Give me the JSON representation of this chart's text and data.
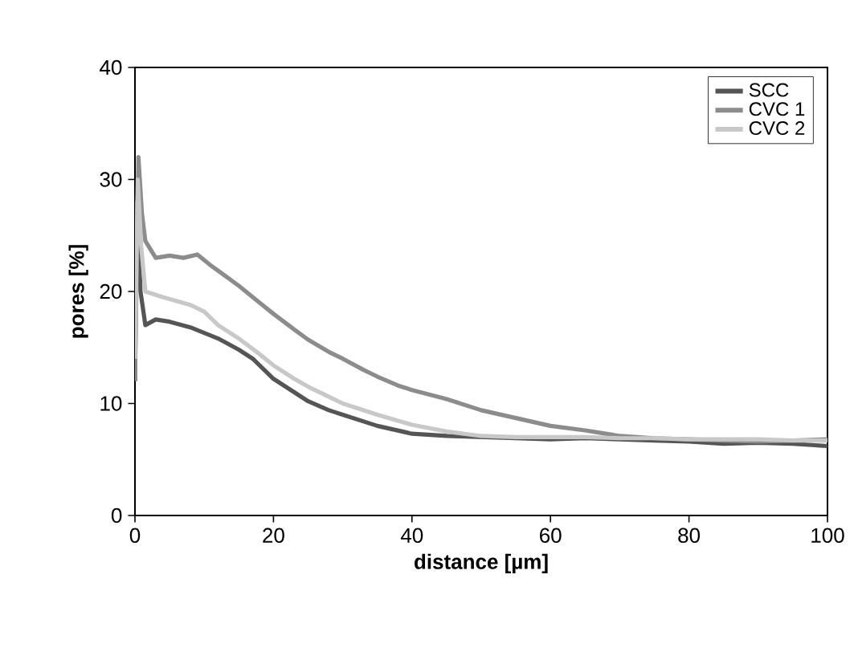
{
  "chart_data": {
    "type": "line",
    "xlabel": "distance [µm]",
    "ylabel": "pores [%]",
    "xlim": [
      0,
      100
    ],
    "ylim": [
      0,
      40
    ],
    "xticks": [
      0,
      20,
      40,
      60,
      80,
      100
    ],
    "yticks": [
      0,
      10,
      20,
      30,
      40
    ],
    "legend": "top right",
    "grid": false,
    "marker": "none",
    "line_style": "solid",
    "series": [
      {
        "name": "SCC",
        "color": "#555555",
        "x": [
          0,
          0.3,
          0.8,
          1.5,
          3,
          5,
          8,
          10,
          12,
          15,
          17,
          20,
          23,
          25,
          28,
          30,
          35,
          40,
          45,
          50,
          55,
          60,
          65,
          70,
          75,
          80,
          85,
          90,
          95,
          100
        ],
        "values": [
          12,
          28,
          20,
          17,
          17.5,
          17.3,
          16.8,
          16.3,
          15.8,
          14.8,
          14,
          12.2,
          11,
          10.2,
          9.4,
          9,
          8,
          7.3,
          7.1,
          7,
          6.9,
          6.8,
          6.9,
          6.8,
          6.7,
          6.6,
          6.4,
          6.5,
          6.4,
          6.2
        ]
      },
      {
        "name": "CVC 1",
        "color": "#8c8c8c",
        "x": [
          0,
          0.5,
          1,
          1.5,
          3,
          5,
          7,
          9,
          11,
          13,
          15,
          18,
          20,
          23,
          25,
          28,
          30,
          33,
          35,
          38,
          40,
          45,
          50,
          55,
          60,
          65,
          70,
          75,
          80,
          85,
          90,
          95,
          100
        ],
        "values": [
          12,
          32,
          27,
          24.5,
          23,
          23.2,
          23,
          23.3,
          22.3,
          21.4,
          20.5,
          19,
          18,
          16.6,
          15.7,
          14.6,
          14,
          13,
          12.4,
          11.6,
          11.2,
          10.4,
          9.4,
          8.7,
          8,
          7.6,
          7.1,
          6.9,
          6.8,
          6.7,
          6.6,
          6.7,
          6.8
        ]
      },
      {
        "name": "CVC 2",
        "color": "#c8c8c8",
        "x": [
          0,
          0.4,
          0.9,
          1.5,
          4,
          8,
          10,
          12,
          15,
          18,
          20,
          23,
          25,
          28,
          30,
          35,
          40,
          45,
          50,
          55,
          60,
          65,
          70,
          75,
          80,
          85,
          90,
          95,
          100
        ],
        "values": [
          14,
          30,
          24,
          20,
          19.5,
          18.8,
          18.2,
          17,
          15.8,
          14.4,
          13.4,
          12.2,
          11.5,
          10.6,
          10,
          9,
          8.1,
          7.5,
          7.1,
          7,
          7,
          7,
          6.9,
          6.9,
          6.8,
          6.8,
          6.8,
          6.7,
          6.7
        ]
      }
    ]
  }
}
